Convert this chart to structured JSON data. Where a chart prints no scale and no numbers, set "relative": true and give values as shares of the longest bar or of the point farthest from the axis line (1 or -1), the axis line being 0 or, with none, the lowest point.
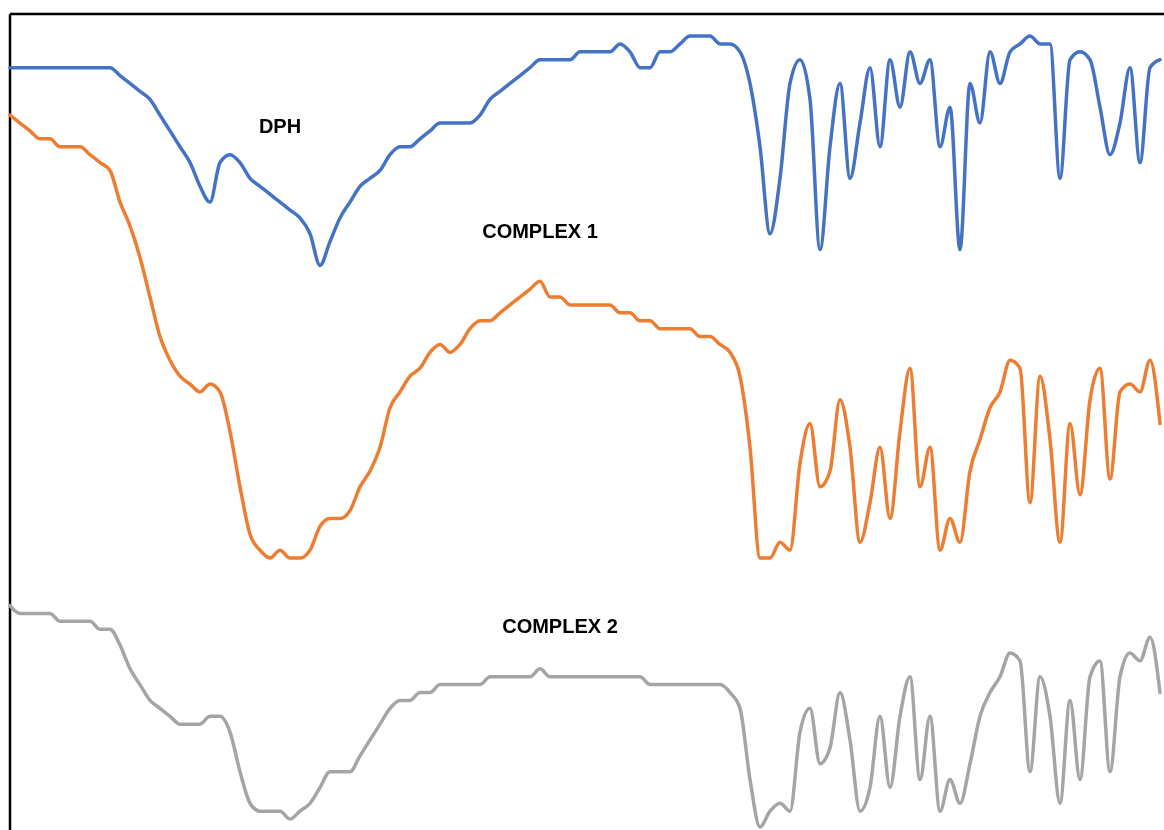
{
  "chart_data": {
    "type": "line",
    "relative": true,
    "categories": [
      null,
      null,
      null,
      null,
      null,
      null,
      null,
      null,
      null,
      null,
      null,
      null,
      null,
      null,
      null,
      null,
      null,
      null,
      null,
      null,
      null,
      null,
      null,
      null,
      null,
      null,
      null,
      null,
      null,
      null,
      null,
      null,
      null,
      null,
      null,
      null,
      null,
      null,
      null,
      null,
      null,
      null,
      null,
      null,
      null,
      null,
      null,
      null,
      null,
      null,
      null,
      null,
      null,
      null,
      null,
      null,
      null,
      null,
      null,
      null,
      null,
      null,
      null,
      null,
      null,
      null,
      null,
      null,
      null,
      null,
      null,
      null,
      null,
      null,
      null,
      null,
      null,
      null,
      null,
      null,
      null,
      null,
      null,
      null,
      null,
      null,
      null,
      null,
      null,
      null,
      null,
      null,
      null,
      null,
      null,
      null,
      null,
      null,
      null,
      null,
      null,
      null,
      null,
      null,
      null,
      null,
      null,
      null,
      null,
      null,
      null,
      null,
      null,
      null,
      null,
      null
    ],
    "series": [
      {
        "name": "DPH",
        "color": "#4472c4",
        "values": [
          0.96,
          0.96,
          0.96,
          0.96,
          0.96,
          0.96,
          0.96,
          0.96,
          0.96,
          0.96,
          0.96,
          0.95,
          0.94,
          0.93,
          0.92,
          0.9,
          0.88,
          0.86,
          0.84,
          0.81,
          0.79,
          0.84,
          0.85,
          0.84,
          0.82,
          0.81,
          0.8,
          0.79,
          0.78,
          0.77,
          0.75,
          0.71,
          0.74,
          0.77,
          0.79,
          0.81,
          0.82,
          0.83,
          0.85,
          0.86,
          0.86,
          0.87,
          0.88,
          0.89,
          0.89,
          0.89,
          0.89,
          0.9,
          0.92,
          0.93,
          0.94,
          0.95,
          0.96,
          0.97,
          0.97,
          0.97,
          0.97,
          0.98,
          0.98,
          0.98,
          0.98,
          0.99,
          0.98,
          0.96,
          0.96,
          0.98,
          0.98,
          0.99,
          1.0,
          1.0,
          1.0,
          0.99,
          0.99,
          0.98,
          0.94,
          0.86,
          0.75,
          0.82,
          0.94,
          0.97,
          0.92,
          0.73,
          0.86,
          0.94,
          0.82,
          0.89,
          0.96,
          0.86,
          0.97,
          0.91,
          0.98,
          0.94,
          0.97,
          0.86,
          0.91,
          0.73,
          0.94,
          0.89,
          0.98,
          0.94,
          0.98,
          0.99,
          1.0,
          0.99,
          0.99,
          0.82,
          0.97,
          0.98,
          0.97,
          0.91,
          0.85,
          0.89,
          0.96,
          0.84,
          0.96,
          0.97
        ]
      },
      {
        "name": "COMPLEX 1",
        "color": "#ed7d31",
        "values": [
          0.9,
          0.89,
          0.88,
          0.87,
          0.87,
          0.86,
          0.86,
          0.86,
          0.85,
          0.84,
          0.83,
          0.79,
          0.76,
          0.72,
          0.67,
          0.62,
          0.59,
          0.57,
          0.56,
          0.55,
          0.56,
          0.55,
          0.5,
          0.43,
          0.37,
          0.35,
          0.34,
          0.35,
          0.34,
          0.34,
          0.35,
          0.38,
          0.39,
          0.39,
          0.4,
          0.43,
          0.45,
          0.48,
          0.53,
          0.55,
          0.57,
          0.58,
          0.6,
          0.61,
          0.6,
          0.61,
          0.63,
          0.64,
          0.64,
          0.65,
          0.66,
          0.67,
          0.68,
          0.69,
          0.67,
          0.67,
          0.66,
          0.66,
          0.66,
          0.66,
          0.66,
          0.65,
          0.65,
          0.64,
          0.64,
          0.63,
          0.63,
          0.63,
          0.63,
          0.62,
          0.62,
          0.61,
          0.6,
          0.57,
          0.48,
          0.34,
          0.34,
          0.36,
          0.35,
          0.46,
          0.51,
          0.43,
          0.45,
          0.54,
          0.48,
          0.36,
          0.41,
          0.48,
          0.39,
          0.5,
          0.58,
          0.43,
          0.48,
          0.35,
          0.39,
          0.36,
          0.45,
          0.49,
          0.53,
          0.55,
          0.59,
          0.58,
          0.41,
          0.57,
          0.49,
          0.36,
          0.51,
          0.42,
          0.54,
          0.58,
          0.44,
          0.55,
          0.56,
          0.55,
          0.59,
          0.51
        ]
      },
      {
        "name": "COMPLEX 2",
        "color": "#a5a5a5",
        "values": [
          0.28,
          0.27,
          0.27,
          0.27,
          0.27,
          0.26,
          0.26,
          0.26,
          0.26,
          0.25,
          0.25,
          0.23,
          0.2,
          0.18,
          0.16,
          0.15,
          0.14,
          0.13,
          0.13,
          0.13,
          0.14,
          0.14,
          0.12,
          0.07,
          0.03,
          0.02,
          0.02,
          0.02,
          0.01,
          0.02,
          0.03,
          0.05,
          0.07,
          0.07,
          0.07,
          0.09,
          0.11,
          0.13,
          0.15,
          0.16,
          0.16,
          0.17,
          0.17,
          0.18,
          0.18,
          0.18,
          0.18,
          0.18,
          0.19,
          0.19,
          0.19,
          0.19,
          0.19,
          0.2,
          0.19,
          0.19,
          0.19,
          0.19,
          0.19,
          0.19,
          0.19,
          0.19,
          0.19,
          0.19,
          0.18,
          0.18,
          0.18,
          0.18,
          0.18,
          0.18,
          0.18,
          0.18,
          0.17,
          0.15,
          0.06,
          0.0,
          0.02,
          0.03,
          0.02,
          0.12,
          0.15,
          0.08,
          0.1,
          0.17,
          0.11,
          0.02,
          0.05,
          0.14,
          0.05,
          0.14,
          0.19,
          0.06,
          0.14,
          0.02,
          0.06,
          0.03,
          0.08,
          0.14,
          0.17,
          0.19,
          0.22,
          0.21,
          0.07,
          0.19,
          0.14,
          0.03,
          0.16,
          0.06,
          0.19,
          0.21,
          0.07,
          0.19,
          0.22,
          0.21,
          0.24,
          0.17
        ]
      }
    ]
  }
}
